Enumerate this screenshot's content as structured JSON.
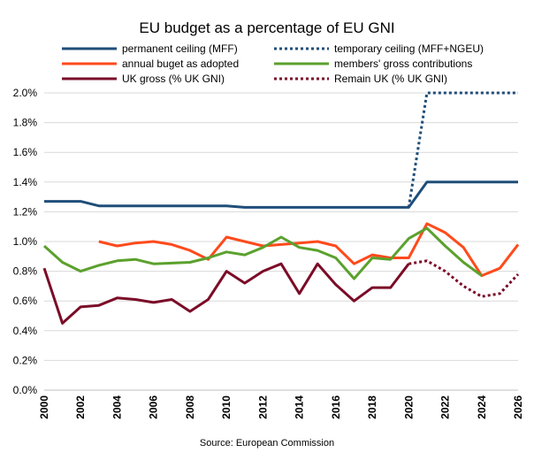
{
  "chart_data": {
    "type": "line",
    "title": "EU budget as a percentage of EU GNI",
    "source": "Source: European Commission",
    "xlabel": "",
    "ylabel": "",
    "xlim": [
      2000,
      2026
    ],
    "ylim": [
      0,
      2.0
    ],
    "y_ticks": [
      "0.0%",
      "0.2%",
      "0.4%",
      "0.6%",
      "0.8%",
      "1.0%",
      "1.2%",
      "1.4%",
      "1.6%",
      "1.8%",
      "2.0%"
    ],
    "x_ticks": [
      "2000",
      "2002",
      "2004",
      "2006",
      "2008",
      "2010",
      "2012",
      "2014",
      "2016",
      "2018",
      "2020",
      "2022",
      "2024",
      "2026"
    ],
    "grid": "horizontal",
    "series": [
      {
        "key": "mff",
        "name": "permanent ceiling (MFF)",
        "color": "#1F4E79",
        "style": "solid",
        "x": [
          2000,
          2001,
          2002,
          2003,
          2004,
          2005,
          2006,
          2007,
          2008,
          2009,
          2010,
          2011,
          2012,
          2013,
          2014,
          2015,
          2016,
          2017,
          2018,
          2019,
          2020,
          2021,
          2022,
          2023,
          2024,
          2025,
          2026
        ],
        "values": [
          1.27,
          1.27,
          1.27,
          1.24,
          1.24,
          1.24,
          1.24,
          1.24,
          1.24,
          1.24,
          1.24,
          1.23,
          1.23,
          1.23,
          1.23,
          1.23,
          1.23,
          1.23,
          1.23,
          1.23,
          1.23,
          1.4,
          1.4,
          1.4,
          1.4,
          1.4,
          1.4
        ]
      },
      {
        "key": "ngeu",
        "name": "temporary ceiling (MFF+NGEU)",
        "color": "#1F4E79",
        "style": "dotted",
        "x": [
          2020,
          2021,
          2022,
          2023,
          2024,
          2025,
          2026
        ],
        "values": [
          1.23,
          2.0,
          2.0,
          2.0,
          2.0,
          2.0,
          2.0
        ]
      },
      {
        "key": "adopted",
        "name": "annual buget as adopted",
        "color": "#FF4A1C",
        "style": "solid",
        "x": [
          2003,
          2004,
          2005,
          2006,
          2007,
          2008,
          2009,
          2010,
          2011,
          2012,
          2013,
          2014,
          2015,
          2016,
          2017,
          2018,
          2019,
          2020,
          2021,
          2022,
          2023,
          2024,
          2025,
          2026
        ],
        "values": [
          1.0,
          0.97,
          0.99,
          1.0,
          0.98,
          0.94,
          0.88,
          1.03,
          1.0,
          0.97,
          0.98,
          0.99,
          1.0,
          0.97,
          0.85,
          0.91,
          0.89,
          0.89,
          1.12,
          1.06,
          0.96,
          0.77,
          0.82,
          0.98
        ]
      },
      {
        "key": "contrib",
        "name": "members' gross contributions",
        "color": "#5BA12D",
        "style": "solid",
        "x": [
          2000,
          2001,
          2002,
          2003,
          2004,
          2005,
          2006,
          2007,
          2008,
          2009,
          2010,
          2011,
          2012,
          2013,
          2014,
          2015,
          2016,
          2017,
          2018,
          2019,
          2020,
          2021,
          2022,
          2023,
          2024
        ],
        "values": [
          0.97,
          0.86,
          0.8,
          0.84,
          0.87,
          0.88,
          0.85,
          0.855,
          0.86,
          0.89,
          0.93,
          0.91,
          0.96,
          1.03,
          0.96,
          0.94,
          0.89,
          0.75,
          0.89,
          0.88,
          1.02,
          1.09,
          0.97,
          0.86,
          0.77
        ]
      },
      {
        "key": "uk",
        "name": "UK gross (% UK GNI)",
        "color": "#7B0C28",
        "style": "solid",
        "x": [
          2000,
          2001,
          2002,
          2003,
          2004,
          2005,
          2006,
          2007,
          2008,
          2009,
          2010,
          2011,
          2012,
          2013,
          2014,
          2015,
          2016,
          2017,
          2018,
          2019,
          2020
        ],
        "values": [
          0.82,
          0.45,
          0.56,
          0.57,
          0.62,
          0.61,
          0.59,
          0.61,
          0.53,
          0.61,
          0.8,
          0.72,
          0.8,
          0.85,
          0.65,
          0.85,
          0.71,
          0.6,
          0.69,
          0.69,
          0.85
        ]
      },
      {
        "key": "remain",
        "name": "Remain UK (% UK GNI)",
        "color": "#7B0C28",
        "style": "dotted",
        "x": [
          2020,
          2021,
          2022,
          2023,
          2024,
          2025,
          2026
        ],
        "values": [
          0.85,
          0.87,
          0.8,
          0.7,
          0.63,
          0.65,
          0.78
        ]
      }
    ],
    "legend": {
      "placement": "top",
      "columns": 2,
      "order": [
        "mff",
        "ngeu",
        "adopted",
        "contrib",
        "uk",
        "remain"
      ]
    }
  }
}
